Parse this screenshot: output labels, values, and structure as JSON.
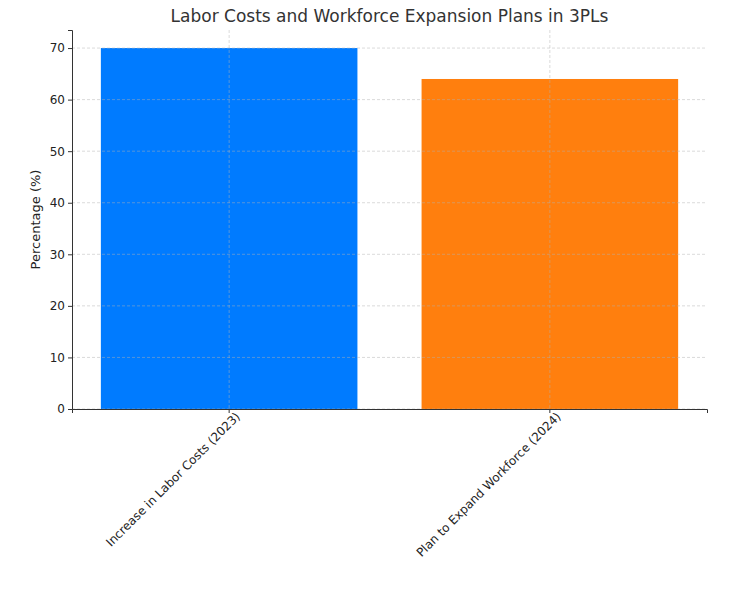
{
  "chart_data": {
    "type": "bar",
    "title": "Labor Costs and Workforce Expansion Plans in 3PLs",
    "y_label": "Percentage (%)",
    "categories": [
      "Increase in Labor Costs (2023)",
      "Plan to Expand Workforce (2024)"
    ],
    "values": [
      70,
      64
    ],
    "colors": [
      "#007bff",
      "#ff7f0e"
    ],
    "ylim": [
      0,
      73.5
    ],
    "yticks": [
      0,
      10,
      20,
      30,
      40,
      50,
      60,
      70
    ],
    "grid": true
  }
}
